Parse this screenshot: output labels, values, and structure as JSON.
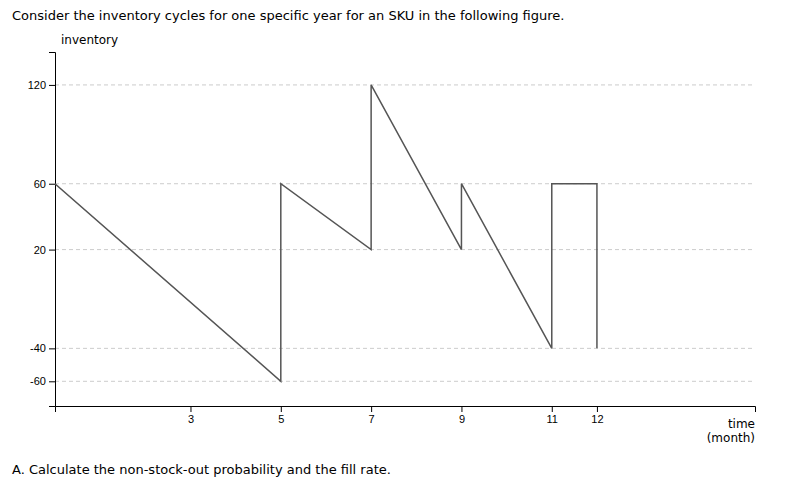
{
  "chart_data": {
    "type": "line",
    "title": "Consider the inventory cycles for one specific year for an SKU in the following figure.",
    "subtitle": "A. Calculate the non-stock-out probability and the fill rate.",
    "xlabel": "time\n(month)",
    "ylabel": "inventory",
    "x": [
      0,
      5,
      5,
      7,
      7,
      9,
      9,
      11,
      11,
      12,
      12
    ],
    "values": [
      60,
      -60,
      60,
      20,
      120,
      20,
      60,
      -40,
      60,
      60,
      -40
    ],
    "color": "#555555",
    "xlim": [
      0,
      15.5
    ],
    "ylim": [
      -75,
      140
    ],
    "xticks": [
      3,
      5,
      7,
      9,
      11,
      12
    ],
    "yticks": [
      120,
      60,
      20,
      -40,
      -60
    ],
    "grid": true
  }
}
